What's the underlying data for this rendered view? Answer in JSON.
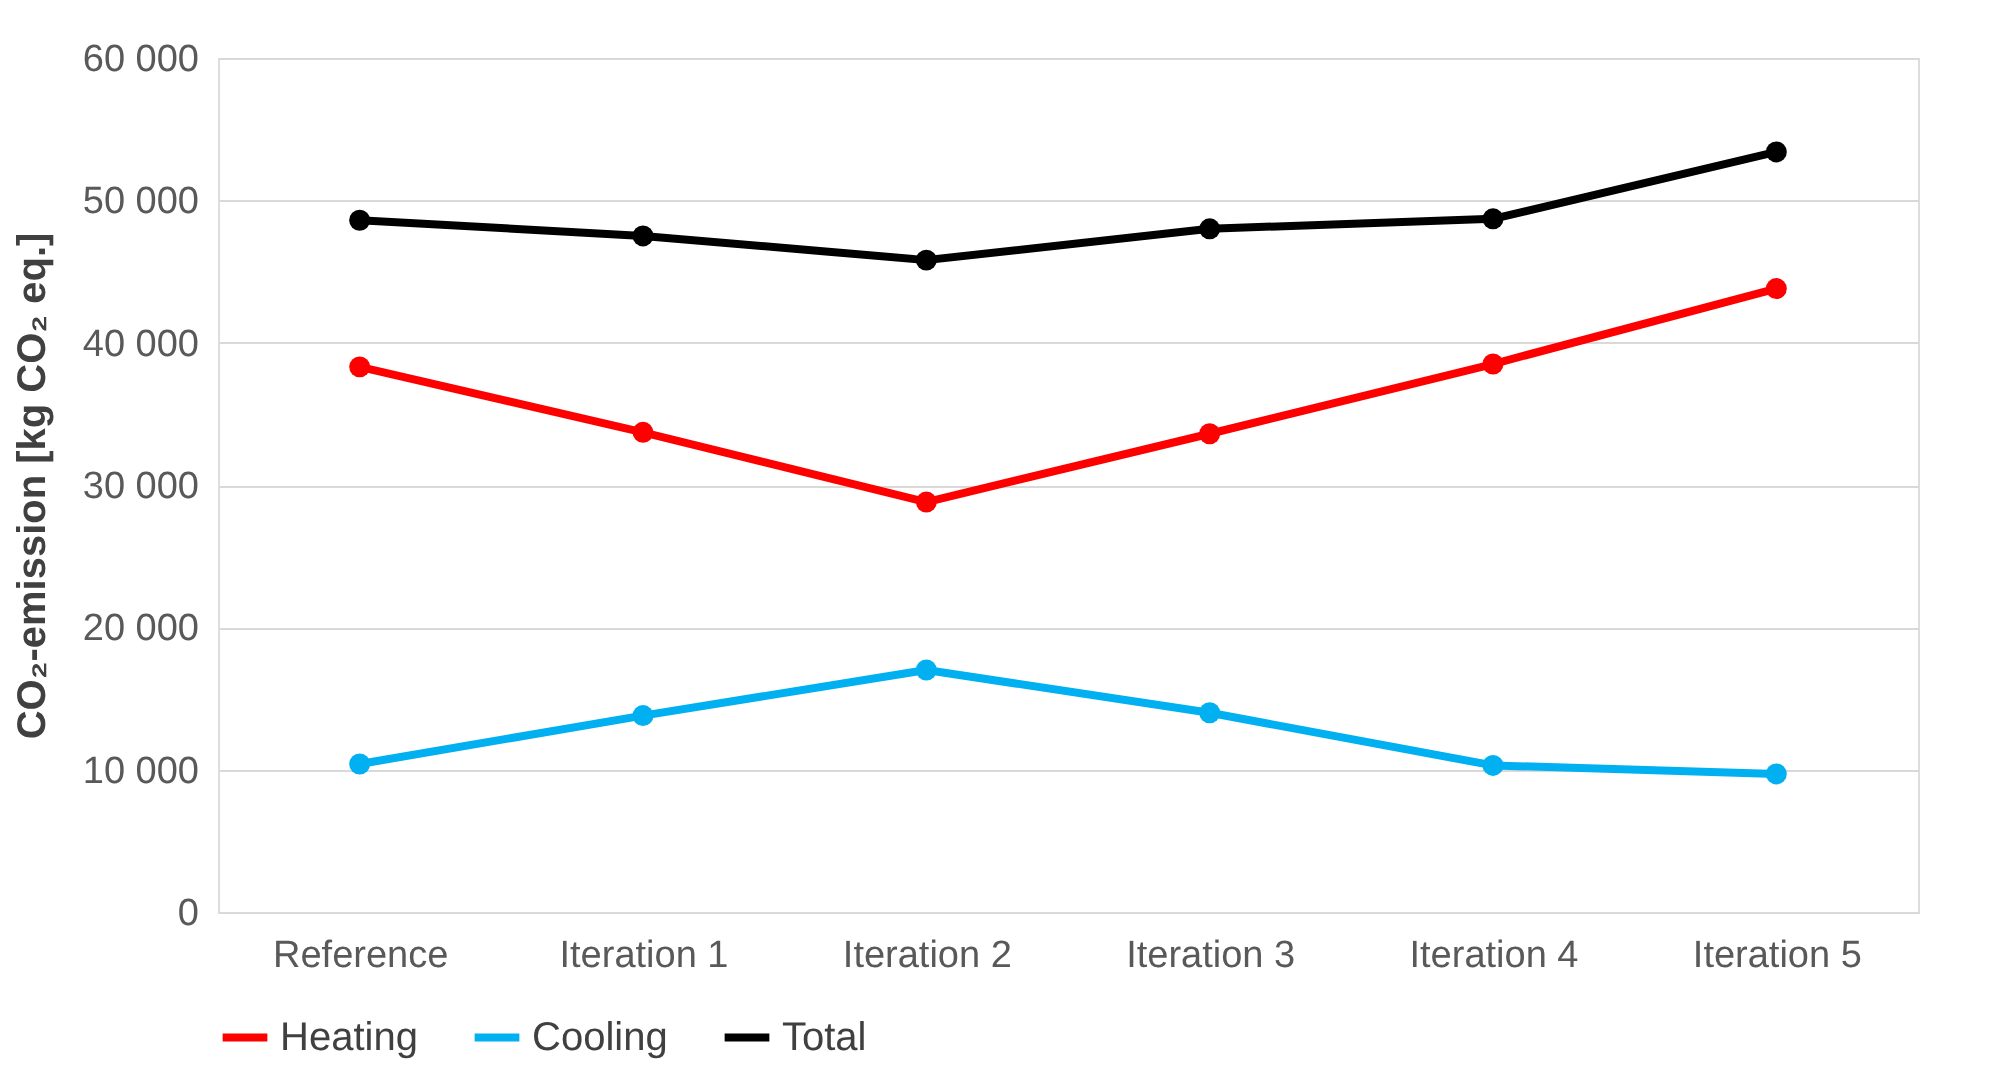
{
  "chart_data": {
    "type": "line",
    "ylabel": "CO₂-emission [kg CO₂ eq.]",
    "categories": [
      "Reference",
      "Iteration 1",
      "Iteration 2",
      "Iteration 3",
      "Iteration 4",
      "Iteration 5"
    ],
    "series": [
      {
        "name": "Heating",
        "color": "#ff0000",
        "values": [
          38300,
          33700,
          28800,
          33600,
          38500,
          43800
        ]
      },
      {
        "name": "Cooling",
        "color": "#00b0f0",
        "values": [
          10400,
          13800,
          17000,
          14000,
          10300,
          9700
        ]
      },
      {
        "name": "Total",
        "color": "#000000",
        "values": [
          48600,
          47500,
          45800,
          48000,
          48700,
          53400
        ]
      }
    ],
    "ylim": [
      0,
      60000
    ],
    "yticks": [
      {
        "value": 0,
        "label": "0"
      },
      {
        "value": 10000,
        "label": "10 000"
      },
      {
        "value": 20000,
        "label": "20 000"
      },
      {
        "value": 30000,
        "label": "30 000"
      },
      {
        "value": 40000,
        "label": "40 000"
      },
      {
        "value": 50000,
        "label": "50 000"
      },
      {
        "value": 60000,
        "label": "60 000"
      }
    ],
    "grid": "y",
    "legend": "bottom",
    "marker": "circle",
    "line_style": "solid"
  }
}
